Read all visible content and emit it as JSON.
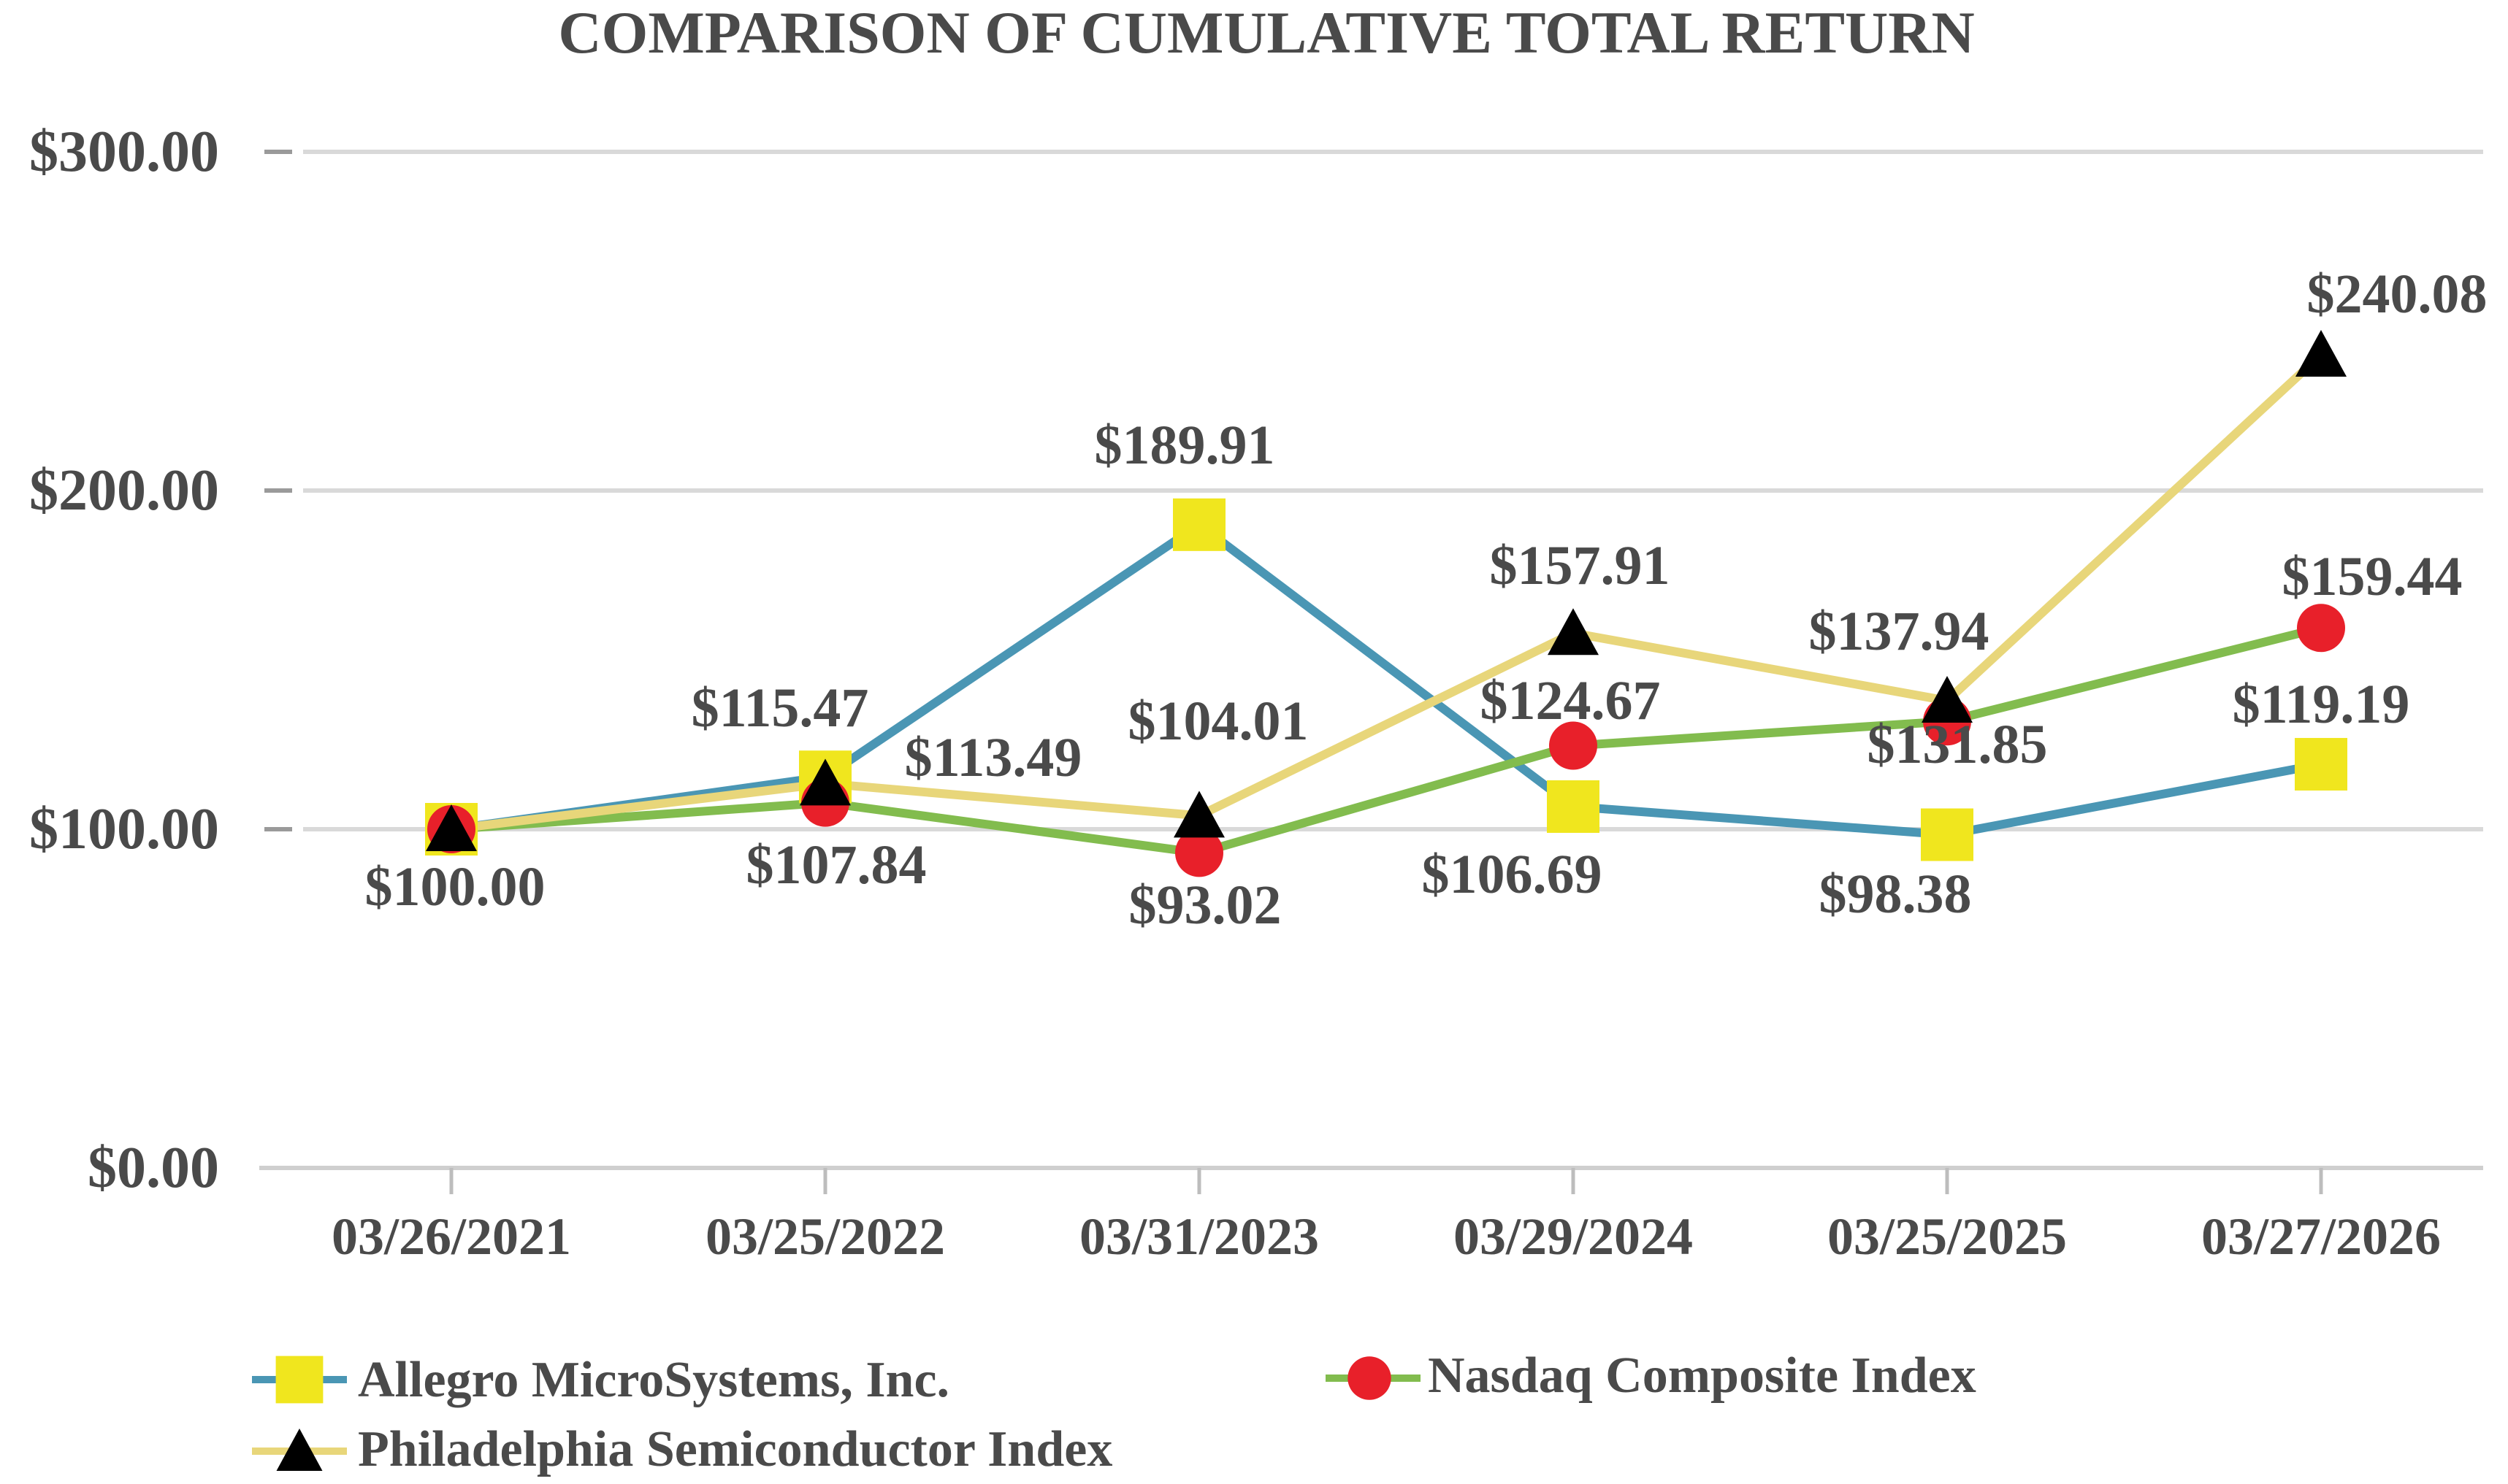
{
  "chart_data": {
    "type": "line",
    "title": "COMPARISON OF CUMULATIVE TOTAL RETURN",
    "xlabel": "",
    "ylabel": "",
    "categories": [
      "03/26/2021",
      "03/25/2022",
      "03/31/2023",
      "03/29/2024",
      "03/25/2025",
      "03/27/2026"
    ],
    "ylim": [
      0,
      300
    ],
    "yticks": [
      0,
      100,
      200,
      300
    ],
    "ytick_labels": [
      "$0.00",
      "$100.00",
      "$200.00",
      "$300.00"
    ],
    "grid": true,
    "legend_position": "bottom",
    "series": [
      {
        "name": "Allegro MicroSystems, Inc.",
        "marker": "square",
        "line_color": "#4a96b4",
        "marker_color": "#f0e61e",
        "values": [
          100.0,
          115.47,
          189.91,
          106.69,
          98.38,
          119.19
        ],
        "labels": [
          "",
          "$115.47",
          "$189.91",
          "$106.69",
          "$98.38",
          "$119.19"
        ]
      },
      {
        "name": "Nasdaq Composite Index",
        "marker": "circle",
        "line_color": "#82bc4e",
        "marker_color": "#e8202a",
        "values": [
          100.0,
          107.84,
          93.02,
          124.67,
          131.85,
          159.44
        ],
        "labels": [
          "",
          "$107.84",
          "$93.02",
          "$124.67",
          "$131.85",
          "$159.44"
        ]
      },
      {
        "name": "Philadelphia Semiconductor Index",
        "marker": "triangle",
        "line_color": "#e8d67a",
        "marker_color": "#000000",
        "values": [
          100.0,
          113.49,
          104.01,
          157.91,
          137.94,
          240.08
        ],
        "labels": [
          "$100.00",
          "$113.49",
          "$104.01",
          "$157.91",
          "$137.94",
          "$240.08"
        ]
      }
    ]
  }
}
